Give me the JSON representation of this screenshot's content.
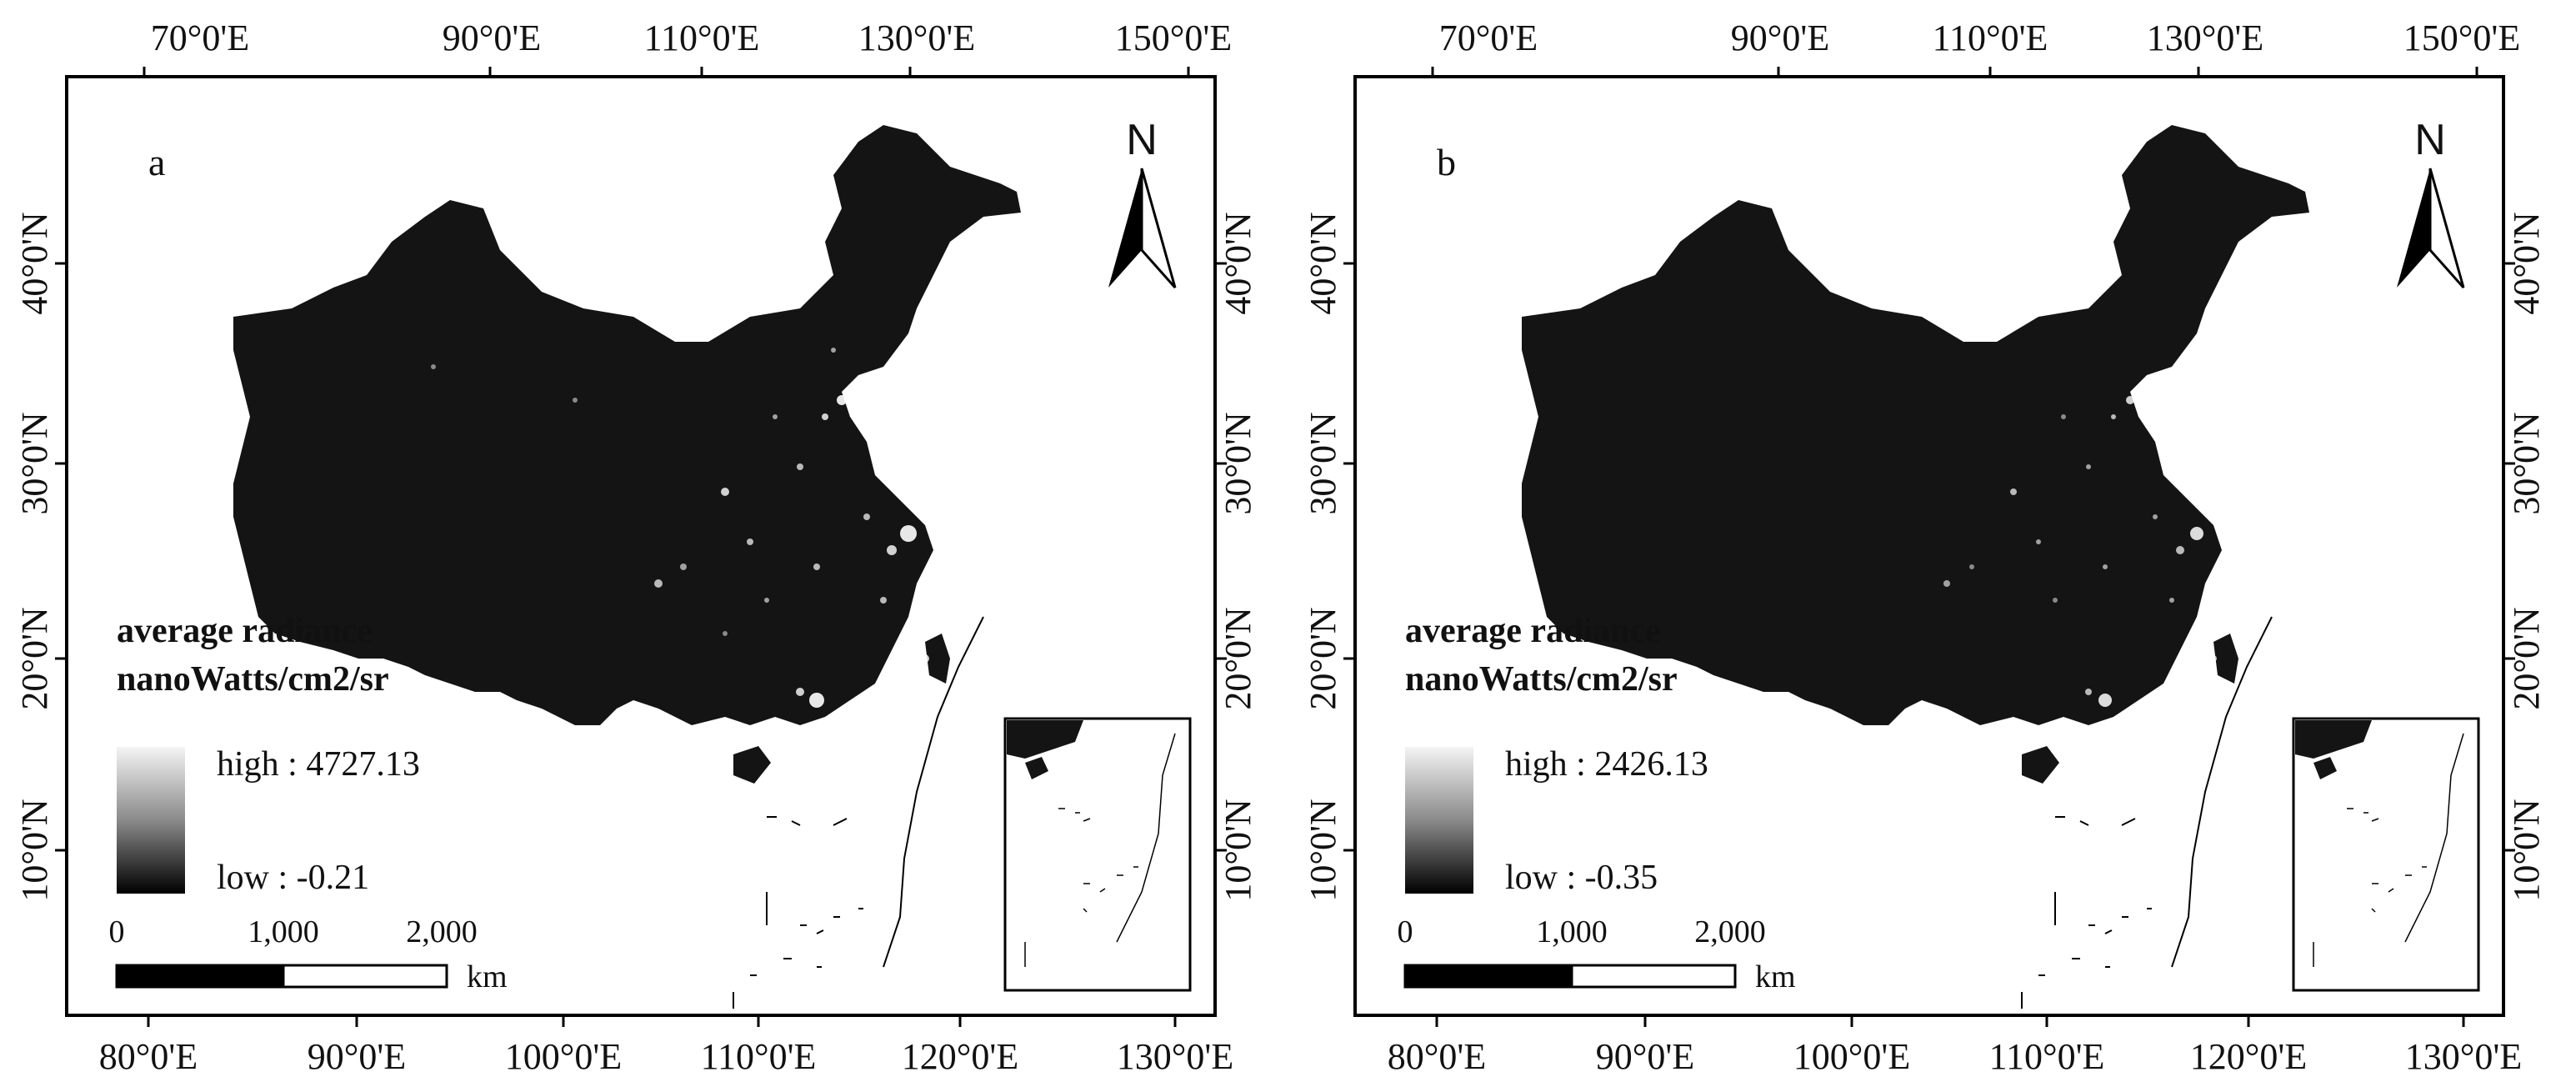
{
  "panels": [
    {
      "letter": "a",
      "legend": {
        "title_line1": "average radiance",
        "title_line2": "nanoWatts/cm2/sr",
        "high": "high : 4727.13",
        "low": "low : -0.21"
      },
      "north": "N",
      "scale": {
        "t0": "0",
        "t1": "1,000",
        "t2": "2,000",
        "unit": "km"
      },
      "top_ticks": [
        "70°0'E",
        "90°0'E",
        "110°0'E",
        "130°0'E",
        "150°0'E"
      ],
      "bottom_ticks": [
        "80°0'E",
        "90°0'E",
        "100°0'E",
        "110°0'E",
        "120°0'E",
        "130°0'E"
      ],
      "left_ticks": [
        "40°0'N",
        "30°0'N",
        "20°0'N",
        "10°0'N"
      ],
      "right_ticks": [
        "40°0'N",
        "30°0'N",
        "20°0'N",
        "10°0'N"
      ]
    },
    {
      "letter": "b",
      "legend": {
        "title_line1": "average radiance",
        "title_line2": "nanoWatts/cm2/sr",
        "high": "high : 2426.13",
        "low": "low : -0.35"
      },
      "north": "N",
      "scale": {
        "t0": "0",
        "t1": "1,000",
        "t2": "2,000",
        "unit": "km"
      },
      "top_ticks": [
        "70°0'E",
        "90°0'E",
        "110°0'E",
        "130°0'E",
        "150°0'E"
      ],
      "bottom_ticks": [
        "80°0'E",
        "90°0'E",
        "100°0'E",
        "110°0'E",
        "120°0'E",
        "130°0'E"
      ],
      "left_ticks": [
        "40°0'N",
        "30°0'N",
        "20°0'N",
        "10°0'N"
      ],
      "right_ticks": [
        "40°0'N",
        "30°0'N",
        "20°0'N",
        "10°0'N"
      ]
    }
  ],
  "colors": {
    "land": "#141414",
    "ramp_high": "#f4f4f4",
    "ramp_low": "#000000",
    "frame": "#000000"
  }
}
